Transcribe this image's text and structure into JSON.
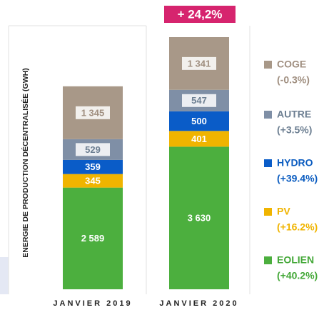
{
  "chart_data": {
    "type": "stacked_bar",
    "y_label": "ENERGIE DE PRODUCTION DÉCENTRALISÉE (GWH)",
    "categories": [
      "JANVIER 2019",
      "JANVIER 2020"
    ],
    "annotation": "+ 24,2%",
    "series": [
      {
        "name": "EOLIEN",
        "change_label": "(+40.2%)",
        "color": "#4caf3e",
        "text_color": "#44a838",
        "values": [
          2589,
          3630
        ],
        "value_labels": [
          "2 589",
          "3 630"
        ]
      },
      {
        "name": "PV",
        "change_label": "(+16.2%)",
        "color": "#f0b400",
        "text_color": "#f0b400",
        "values": [
          345,
          401
        ],
        "value_labels": [
          "345",
          "401"
        ]
      },
      {
        "name": "HYDRO",
        "change_label": "(+39.4%)",
        "color": "#0a5cc8",
        "text_color": "#0b5cc0",
        "values": [
          359,
          500
        ],
        "value_labels": [
          "359",
          "500"
        ]
      },
      {
        "name": "AUTRE",
        "change_label": "(+3.5%)",
        "color": "#7f8fa6",
        "text_color": "#6d7f92",
        "values": [
          529,
          547
        ],
        "value_labels": [
          "529",
          "547"
        ]
      },
      {
        "name": "COGE",
        "change_label": "(-0.3%)",
        "color": "#a89888",
        "text_color": "#a08f80",
        "values": [
          1345,
          1341
        ],
        "value_labels": [
          "1 345",
          "1 341"
        ]
      }
    ]
  }
}
